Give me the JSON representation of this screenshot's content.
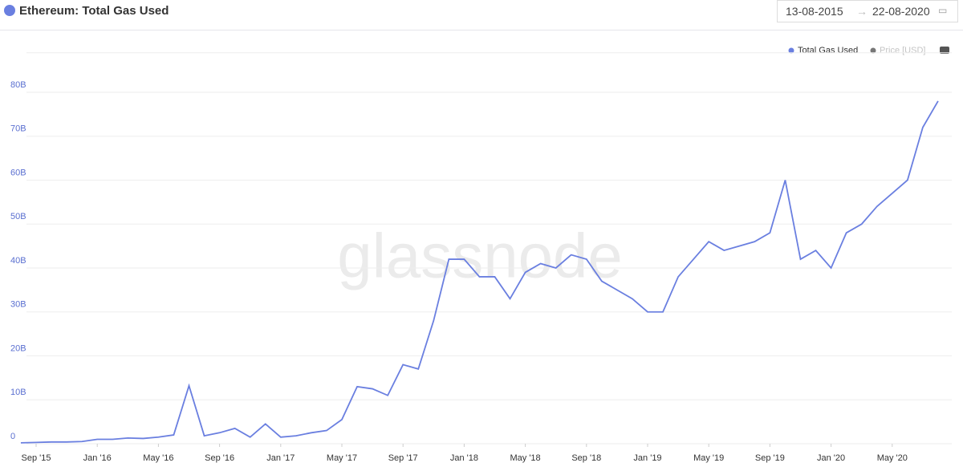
{
  "chart_data": {
    "type": "line",
    "title": "Ethereum: Total Gas Used",
    "x": [
      "2015-08",
      "2015-09",
      "2015-10",
      "2015-11",
      "2015-12",
      "2016-01",
      "2016-02",
      "2016-03",
      "2016-04",
      "2016-05",
      "2016-06",
      "2016-07",
      "2016-08",
      "2016-09",
      "2016-10",
      "2016-11",
      "2016-12",
      "2017-01",
      "2017-02",
      "2017-03",
      "2017-04",
      "2017-05",
      "2017-06",
      "2017-07",
      "2017-08",
      "2017-09",
      "2017-10",
      "2017-11",
      "2017-12",
      "2018-01",
      "2018-02",
      "2018-03",
      "2018-04",
      "2018-05",
      "2018-06",
      "2018-07",
      "2018-08",
      "2018-09",
      "2018-10",
      "2018-11",
      "2018-12",
      "2019-01",
      "2019-02",
      "2019-03",
      "2019-04",
      "2019-05",
      "2019-06",
      "2019-07",
      "2019-08",
      "2019-09",
      "2019-10",
      "2019-11",
      "2019-12",
      "2020-01",
      "2020-02",
      "2020-03",
      "2020-04",
      "2020-05",
      "2020-06",
      "2020-07",
      "2020-08"
    ],
    "series": [
      {
        "name": "Total Gas Used",
        "color": "#6a7fe0",
        "values": [
          0.2,
          0.3,
          0.4,
          0.4,
          0.5,
          1.0,
          1.0,
          1.3,
          1.2,
          1.5,
          2.0,
          13.2,
          1.8,
          2.5,
          3.5,
          1.5,
          4.5,
          1.5,
          1.8,
          2.5,
          3.0,
          5.5,
          13.0,
          12.5,
          11,
          18,
          17,
          28,
          42,
          42,
          38,
          38,
          33,
          39,
          41,
          40,
          43,
          42,
          37,
          35,
          33,
          30,
          30,
          38,
          42,
          46,
          44,
          45,
          46,
          48,
          60,
          42,
          44,
          40,
          48,
          50,
          54,
          57,
          60,
          72,
          78
        ]
      }
    ],
    "ylim": [
      0,
      89
    ],
    "yticks": [
      0,
      {
        "value": 10,
        "label": "10B"
      },
      {
        "value": 20,
        "label": "20B"
      },
      {
        "value": 30,
        "label": "30B"
      },
      {
        "value": 40,
        "label": "40B"
      },
      {
        "value": 50,
        "label": "50B"
      },
      {
        "value": 60,
        "label": "60B"
      },
      {
        "value": 70,
        "label": "70B"
      },
      {
        "value": 80,
        "label": "80B"
      }
    ],
    "xticks": [
      {
        "value": "2015-09",
        "label": "Sep '15"
      },
      {
        "value": "2016-01",
        "label": "Jan '16"
      },
      {
        "value": "2016-05",
        "label": "May '16"
      },
      {
        "value": "2016-09",
        "label": "Sep '16"
      },
      {
        "value": "2017-01",
        "label": "Jan '17"
      },
      {
        "value": "2017-05",
        "label": "May '17"
      },
      {
        "value": "2017-09",
        "label": "Sep '17"
      },
      {
        "value": "2018-01",
        "label": "Jan '18"
      },
      {
        "value": "2018-05",
        "label": "May '18"
      },
      {
        "value": "2018-09",
        "label": "Sep '18"
      },
      {
        "value": "2019-01",
        "label": "Jan '19"
      },
      {
        "value": "2019-05",
        "label": "May '19"
      },
      {
        "value": "2019-09",
        "label": "Sep '19"
      },
      {
        "value": "2020-01",
        "label": "Jan '20"
      },
      {
        "value": "2020-05",
        "label": "May '20"
      }
    ],
    "grid": true
  },
  "controls": {
    "from": "13-08-2015",
    "to": "22-08-2020",
    "inactive_legend": "Price [USD]"
  },
  "watermark": "glassnode"
}
